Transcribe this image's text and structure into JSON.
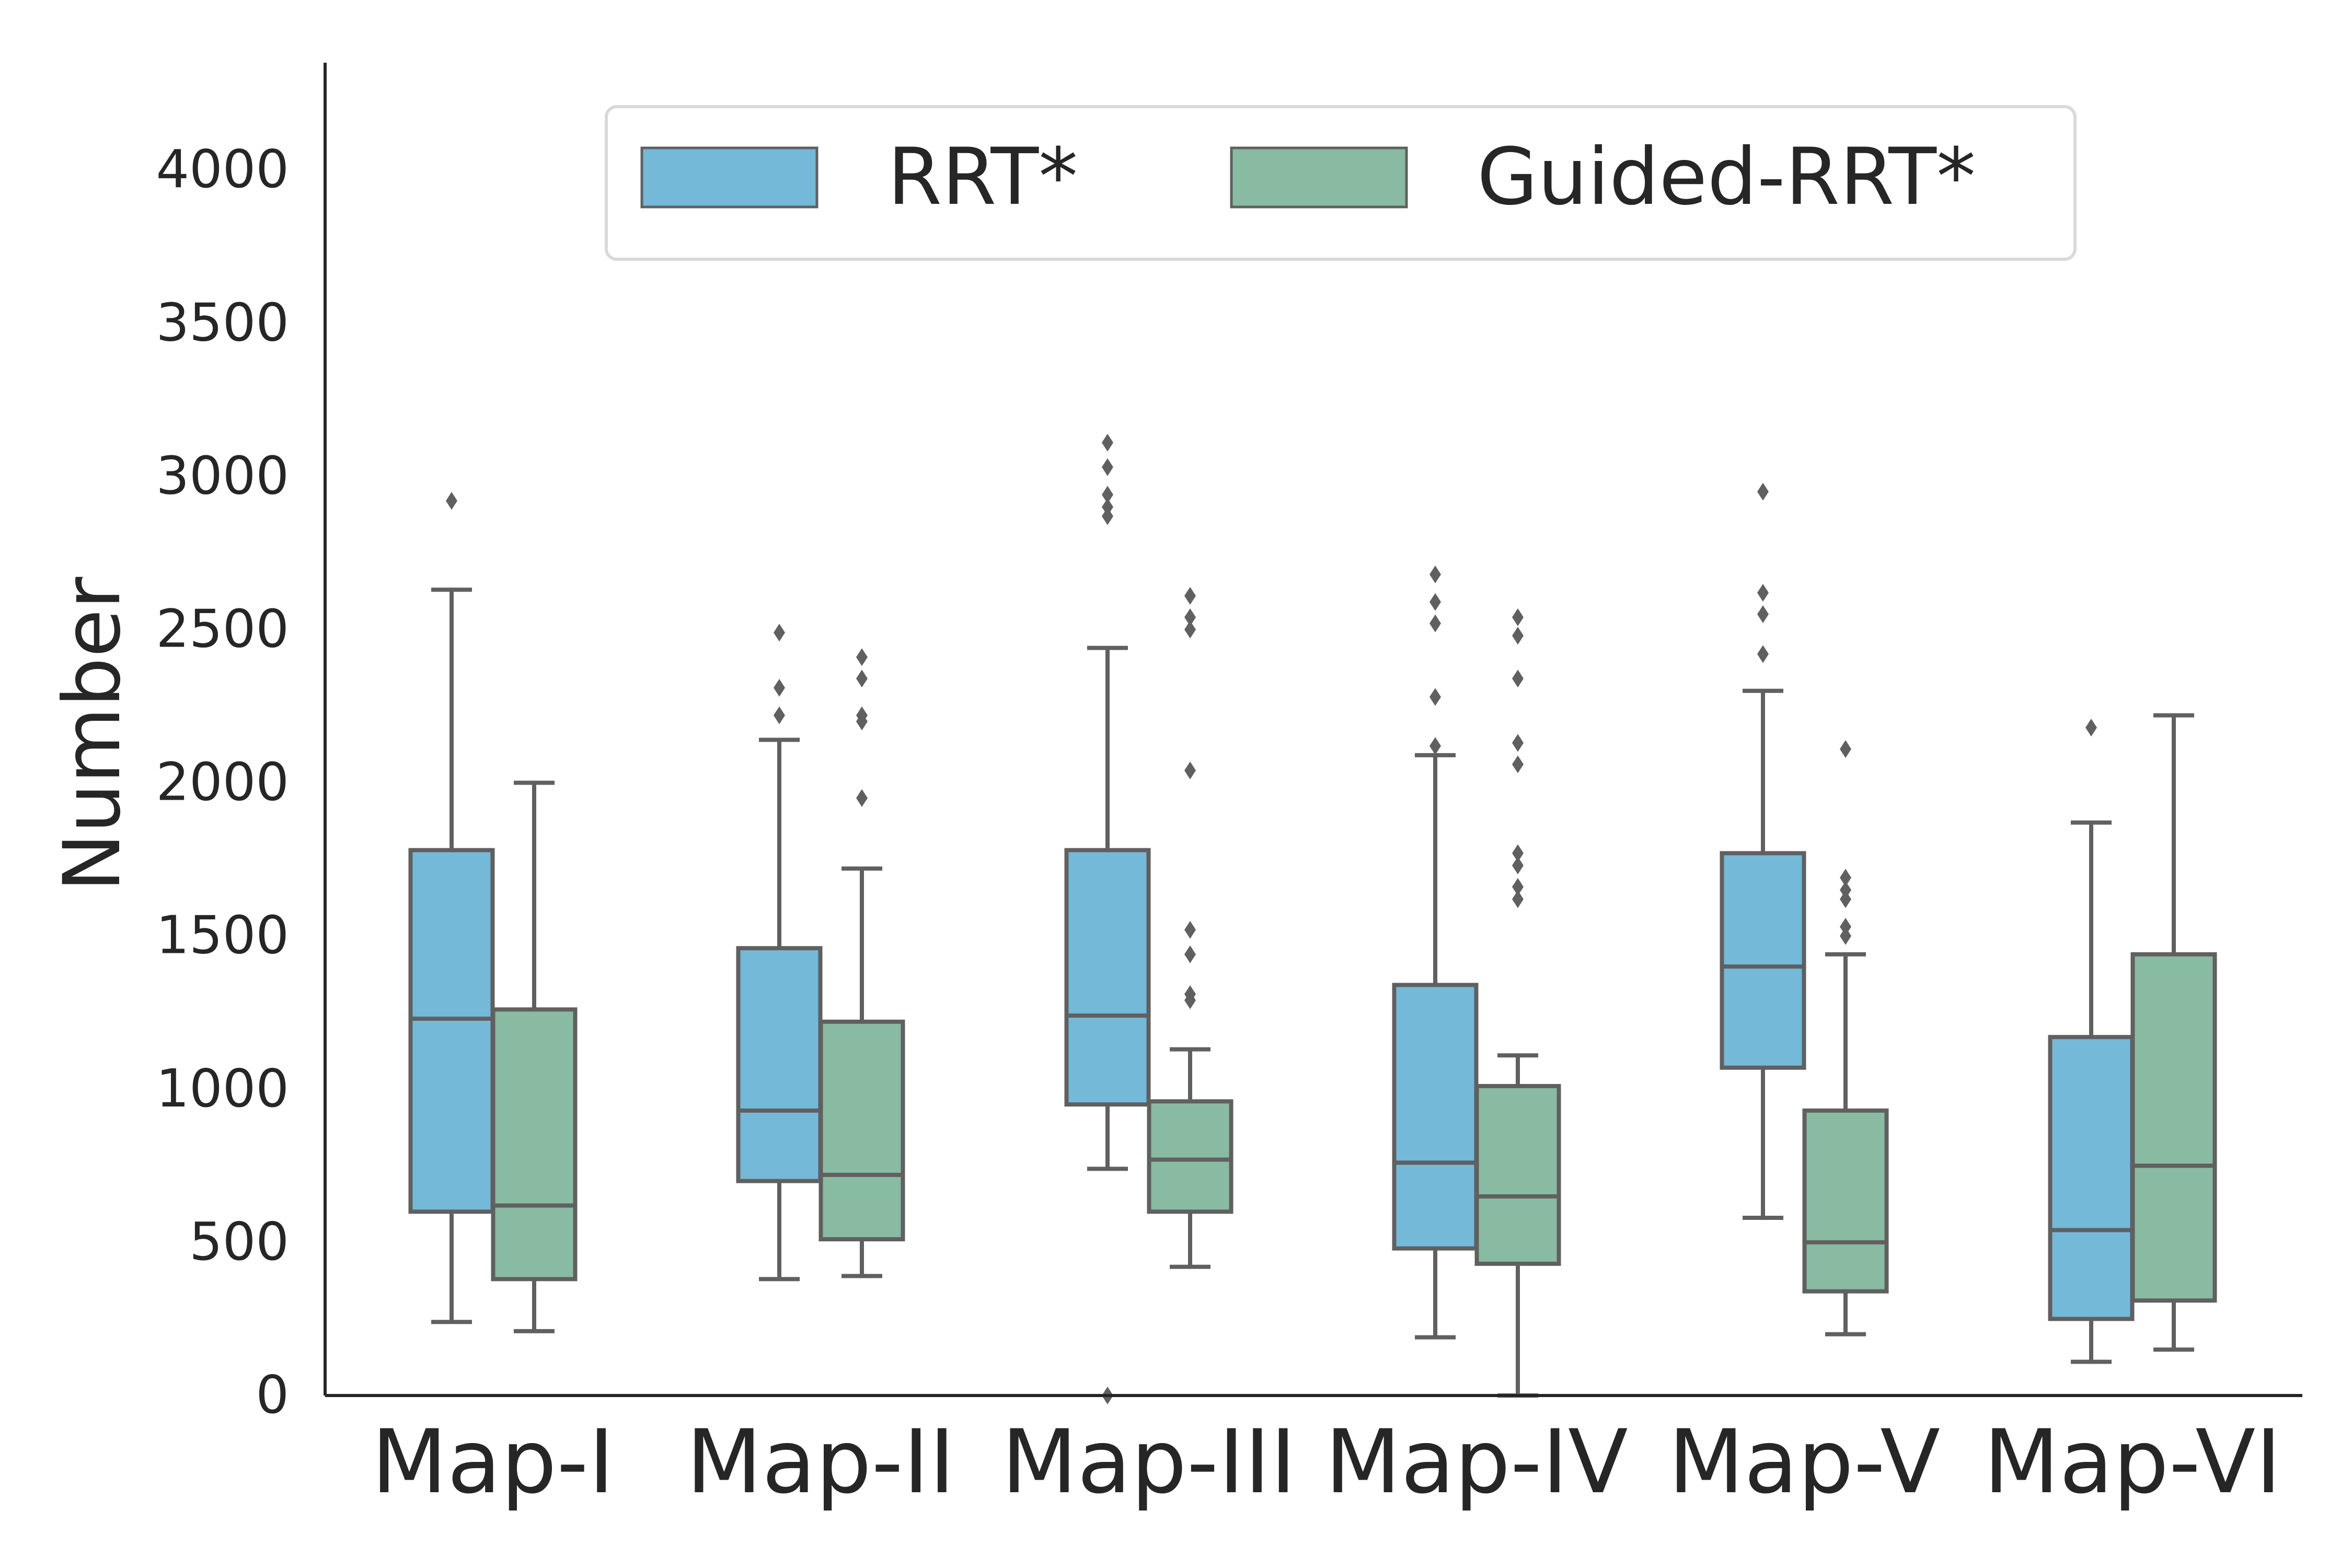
{
  "chart_data": {
    "type": "boxplot",
    "ylabel": "Number",
    "xlabel": "",
    "ylim": [
      0,
      4350
    ],
    "yticks": [
      "0",
      "500",
      "1000",
      "1500",
      "2000",
      "2500",
      "3000",
      "3500",
      "4000"
    ],
    "ytick_values": [
      0,
      500,
      1000,
      1500,
      2000,
      2500,
      3000,
      3500,
      4000
    ],
    "categories": [
      "Map-I",
      "Map-II",
      "Map-III",
      "Map-IV",
      "Map-V",
      "Map-VI"
    ],
    "legend": {
      "position": "top-center",
      "entries": [
        "RRT*",
        "Guided-RRT*"
      ]
    },
    "colors": {
      "RRT*": "#74b9d8",
      "Guided-RRT*": "#88bba1",
      "edge": "#606060",
      "axis": "#262626"
    },
    "series": [
      {
        "name": "RRT*",
        "boxes": [
          {
            "whislo": 240,
            "q1": 600,
            "med": 1230,
            "q3": 1780,
            "whishi": 2630,
            "fliers": [
              2920
            ]
          },
          {
            "whislo": 380,
            "q1": 700,
            "med": 930,
            "q3": 1460,
            "whishi": 2140,
            "fliers": [
              2220,
              2310,
              2490
            ]
          },
          {
            "whislo": 740,
            "q1": 950,
            "med": 1240,
            "q3": 1780,
            "whishi": 2440,
            "fliers": [
              0,
              2870,
              2900,
              2940,
              3030,
              3110
            ]
          },
          {
            "whislo": 190,
            "q1": 480,
            "med": 760,
            "q3": 1340,
            "whishi": 2090,
            "fliers": [
              2120,
              2280,
              2520,
              2590,
              2680
            ]
          },
          {
            "whislo": 580,
            "q1": 1070,
            "med": 1400,
            "q3": 1770,
            "whishi": 2300,
            "fliers": [
              2420,
              2550,
              2620,
              2950
            ]
          },
          {
            "whislo": 110,
            "q1": 250,
            "med": 540,
            "q3": 1170,
            "whishi": 1870,
            "fliers": [
              2180
            ]
          }
        ]
      },
      {
        "name": "Guided-RRT*",
        "boxes": [
          {
            "whislo": 210,
            "q1": 380,
            "med": 620,
            "q3": 1260,
            "whishi": 2000,
            "fliers": []
          },
          {
            "whislo": 390,
            "q1": 510,
            "med": 720,
            "q3": 1220,
            "whishi": 1720,
            "fliers": [
              1950,
              2200,
              2220,
              2340,
              2410
            ]
          },
          {
            "whislo": 420,
            "q1": 600,
            "med": 770,
            "q3": 960,
            "whishi": 1130,
            "fliers": [
              1290,
              1310,
              1440,
              1520,
              2040,
              2500,
              2540,
              2610
            ]
          },
          {
            "whislo": 0,
            "q1": 430,
            "med": 650,
            "q3": 1010,
            "whishi": 1110,
            "fliers": [
              1620,
              1660,
              1730,
              1770,
              2060,
              2130,
              2340,
              2480,
              2540
            ]
          },
          {
            "whislo": 200,
            "q1": 340,
            "med": 500,
            "q3": 930,
            "whishi": 1440,
            "fliers": [
              1500,
              1530,
              1620,
              1650,
              1690,
              2110
            ]
          },
          {
            "whislo": 150,
            "q1": 310,
            "med": 750,
            "q3": 1440,
            "whishi": 2220,
            "fliers": []
          }
        ]
      }
    ]
  }
}
